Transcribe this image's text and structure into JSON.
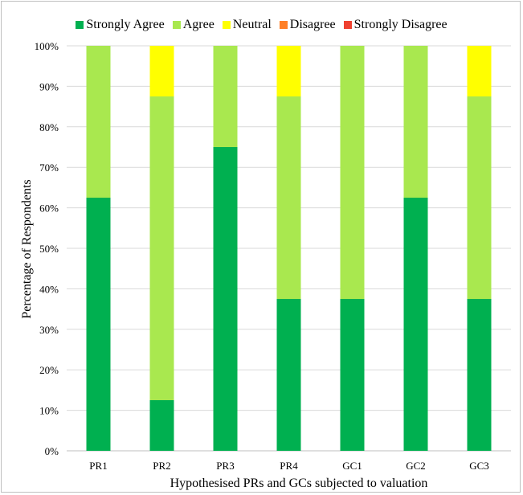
{
  "chart_data": {
    "type": "bar",
    "stacked": true,
    "categories": [
      "PR1",
      "PR2",
      "PR3",
      "PR4",
      "GC1",
      "GC2",
      "GC3"
    ],
    "series": [
      {
        "name": "Strongly Agree",
        "color": "#00B050",
        "values": [
          62.5,
          12.5,
          75,
          37.5,
          37.5,
          62.5,
          37.5
        ]
      },
      {
        "name": "Agree",
        "color": "#A9E84F",
        "values": [
          37.5,
          75,
          25,
          50,
          62.5,
          37.5,
          50
        ]
      },
      {
        "name": "Neutral",
        "color": "#FFFF00",
        "values": [
          0,
          12.5,
          0,
          12.5,
          0,
          0,
          12.5
        ]
      },
      {
        "name": "Disagree",
        "color": "#FF7F27",
        "values": [
          0,
          0,
          0,
          0,
          0,
          0,
          0
        ]
      },
      {
        "name": "Strongly Disagree",
        "color": "#EF4130",
        "values": [
          0,
          0,
          0,
          0,
          0,
          0,
          0
        ]
      }
    ],
    "yticks": [
      "0%",
      "10%",
      "20%",
      "30%",
      "40%",
      "50%",
      "60%",
      "70%",
      "80%",
      "90%",
      "100%"
    ],
    "ylim": [
      0,
      100
    ],
    "xlabel": "Hypothesised PRs and GCs subjected to valuation",
    "ylabel": "Percentage of Respondents",
    "grid": true,
    "legend_position": "top"
  }
}
